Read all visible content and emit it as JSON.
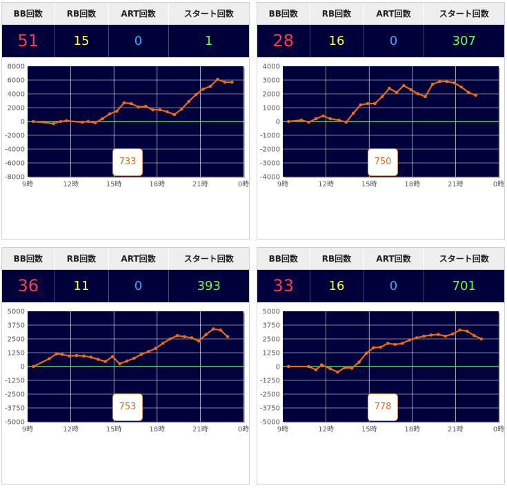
{
  "headers": {
    "bb": "BB回数",
    "rb": "RB回数",
    "art": "ART回数",
    "start": "スタート回数"
  },
  "colors": {
    "bb": "#ff3a4e",
    "rb": "#ffff33",
    "art": "#33aaff",
    "start": "#66ff44",
    "line": "#ee6a10",
    "zero_line": "#66ff44",
    "plot_bg": "#00003a"
  },
  "panels": [
    {
      "bb": "51",
      "rb": "15",
      "art": "0",
      "start": "1",
      "button": "733",
      "chart_data": {
        "type": "line",
        "x_ticks": [
          "9時",
          "12時",
          "15時",
          "18時",
          "21時",
          "0時"
        ],
        "y_ticks": [
          "8000",
          "6000",
          "4000",
          "2000",
          "0",
          "-2000",
          "-4000",
          "-6000",
          "-8000"
        ],
        "ylim": [
          -8000,
          8000
        ],
        "xlim": [
          9,
          24
        ],
        "grid": true,
        "series": [
          {
            "x": [
              9.4,
              10.8,
              11.3,
              11.7,
              12.8,
              13.2,
              13.7,
              14.2,
              14.7,
              15.2,
              15.7,
              16.2,
              16.7,
              17.2,
              17.7,
              18.2,
              18.7,
              19.2,
              19.7,
              20.2,
              20.7,
              21.2,
              21.7,
              22.2,
              22.7,
              23.2
            ],
            "y": [
              0,
              -300,
              0,
              100,
              -100,
              0,
              -200,
              400,
              1100,
              1500,
              2700,
              2600,
              2100,
              2200,
              1700,
              1700,
              1400,
              1000,
              1800,
              2900,
              3900,
              4700,
              5100,
              6100,
              5700,
              5700
            ]
          }
        ]
      }
    },
    {
      "bb": "28",
      "rb": "16",
      "art": "0",
      "start": "307",
      "button": "750",
      "chart_data": {
        "type": "line",
        "x_ticks": [
          "9時",
          "12時",
          "15時",
          "18時",
          "21時",
          "0時"
        ],
        "y_ticks": [
          "4000",
          "3000",
          "2000",
          "1000",
          "0",
          "-1000",
          "-2000",
          "-3000",
          "-4000"
        ],
        "ylim": [
          -4000,
          4000
        ],
        "xlim": [
          9,
          24
        ],
        "grid": true,
        "series": [
          {
            "x": [
              9.4,
              10.3,
              10.8,
              11.3,
              11.8,
              12.3,
              12.9,
              13.4,
              13.9,
              14.4,
              14.9,
              15.4,
              15.9,
              16.4,
              16.9,
              17.4,
              17.9,
              18.4,
              18.9,
              19.4,
              19.9,
              20.4,
              20.9,
              21.4,
              21.9,
              22.4
            ],
            "y": [
              0,
              100,
              -50,
              200,
              400,
              200,
              100,
              -50,
              600,
              1200,
              1300,
              1300,
              1800,
              2400,
              2100,
              2600,
              2300,
              2000,
              1800,
              2700,
              2900,
              2900,
              2800,
              2500,
              2100,
              1900
            ]
          }
        ]
      }
    },
    {
      "bb": "36",
      "rb": "11",
      "art": "0",
      "start": "393",
      "button": "753",
      "chart_data": {
        "type": "line",
        "x_ticks": [
          "9時",
          "12時",
          "15時",
          "18時",
          "21時",
          "0時"
        ],
        "y_ticks": [
          "5000",
          "3750",
          "2500",
          "1250",
          "0",
          "-1250",
          "-2500",
          "-3750",
          "-5000"
        ],
        "ylim": [
          -5000,
          5000
        ],
        "xlim": [
          9,
          24
        ],
        "grid": true,
        "series": [
          {
            "x": [
              9.4,
              10.5,
              11.0,
              11.4,
              11.9,
              12.4,
              12.9,
              13.4,
              13.9,
              14.4,
              14.9,
              15.4,
              15.9,
              16.4,
              16.9,
              17.4,
              17.9,
              18.4,
              18.9,
              19.4,
              19.9,
              20.4,
              20.9,
              21.4,
              21.9,
              22.4,
              22.9
            ],
            "y": [
              0,
              700,
              1150,
              1100,
              950,
              1000,
              950,
              850,
              650,
              450,
              900,
              250,
              500,
              750,
              1100,
              1350,
              1650,
              2100,
              2500,
              2800,
              2700,
              2600,
              2300,
              2900,
              3400,
              3300,
              2700
            ]
          }
        ]
      }
    },
    {
      "bb": "33",
      "rb": "16",
      "art": "0",
      "start": "701",
      "button": "778",
      "chart_data": {
        "type": "line",
        "x_ticks": [
          "9時",
          "12時",
          "15時",
          "18時",
          "21時",
          "0時"
        ],
        "y_ticks": [
          "5000",
          "3750",
          "2500",
          "1250",
          "0",
          "-1250",
          "-2500",
          "-3750",
          "-5000"
        ],
        "ylim": [
          -5000,
          5000
        ],
        "xlim": [
          9,
          24
        ],
        "grid": true,
        "series": [
          {
            "x": [
              9.4,
              10.8,
              11.3,
              11.7,
              12.3,
              12.8,
              13.3,
              13.8,
              14.3,
              14.8,
              15.3,
              15.8,
              16.3,
              16.8,
              17.3,
              17.8,
              18.3,
              18.8,
              19.3,
              19.8,
              20.3,
              20.8,
              21.3,
              21.8,
              22.3,
              22.8
            ],
            "y": [
              0,
              0,
              -300,
              150,
              -200,
              -500,
              -100,
              -150,
              400,
              1200,
              1700,
              1750,
              2100,
              2000,
              2100,
              2400,
              2600,
              2750,
              2850,
              2900,
              2750,
              2950,
              3300,
              3200,
              2800,
              2500
            ]
          }
        ]
      }
    }
  ]
}
